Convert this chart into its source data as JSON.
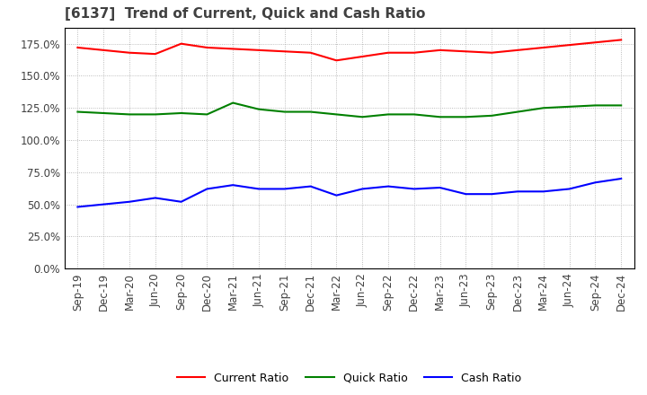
{
  "title": "[6137]  Trend of Current, Quick and Cash Ratio",
  "x_labels": [
    "Sep-19",
    "Dec-19",
    "Mar-20",
    "Jun-20",
    "Sep-20",
    "Dec-20",
    "Mar-21",
    "Jun-21",
    "Sep-21",
    "Dec-21",
    "Mar-22",
    "Jun-22",
    "Sep-22",
    "Dec-22",
    "Mar-23",
    "Jun-23",
    "Sep-23",
    "Dec-23",
    "Mar-24",
    "Jun-24",
    "Sep-24",
    "Dec-24"
  ],
  "current_ratio": [
    172,
    170,
    168,
    167,
    175,
    172,
    171,
    170,
    169,
    168,
    162,
    165,
    168,
    168,
    170,
    169,
    168,
    170,
    172,
    174,
    176,
    178
  ],
  "quick_ratio": [
    122,
    121,
    120,
    120,
    121,
    120,
    129,
    124,
    122,
    122,
    120,
    118,
    120,
    120,
    118,
    118,
    119,
    122,
    125,
    126,
    127,
    127
  ],
  "cash_ratio": [
    48,
    50,
    52,
    55,
    52,
    62,
    65,
    62,
    62,
    64,
    57,
    62,
    64,
    62,
    63,
    58,
    58,
    60,
    60,
    62,
    67,
    70
  ],
  "current_color": "#ff0000",
  "quick_color": "#008000",
  "cash_color": "#0000ff",
  "ylim": [
    0,
    187.5
  ],
  "yticks": [
    0,
    25,
    50,
    75,
    100,
    125,
    150,
    175
  ],
  "background_color": "#ffffff",
  "grid_color": "#aaaaaa",
  "legend_labels": [
    "Current Ratio",
    "Quick Ratio",
    "Cash Ratio"
  ],
  "title_color": "#404040",
  "title_fontsize": 11,
  "tick_fontsize": 8.5,
  "line_width": 1.5
}
